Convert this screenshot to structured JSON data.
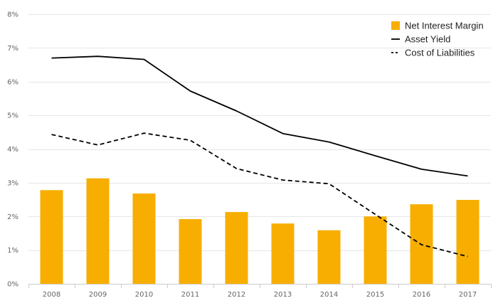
{
  "chart_data": {
    "type": "bar",
    "categories": [
      "2008",
      "2009",
      "2010",
      "2011",
      "2012",
      "2013",
      "2014",
      "2015",
      "2016",
      "2017"
    ],
    "series": [
      {
        "name": "Net Interest Margin",
        "type": "bar",
        "color": "#F7AE00",
        "values": [
          2.78,
          3.13,
          2.68,
          1.92,
          2.13,
          1.79,
          1.59,
          2.0,
          2.36,
          2.49
        ]
      },
      {
        "name": "Asset Yield",
        "type": "line",
        "style": "solid",
        "color": "#000000",
        "values": [
          6.7,
          6.75,
          6.66,
          5.72,
          5.13,
          4.46,
          4.21,
          3.8,
          3.4,
          3.2
        ]
      },
      {
        "name": "Cost of Liabilities",
        "type": "line",
        "style": "dashed",
        "color": "#000000",
        "values": [
          4.43,
          4.12,
          4.47,
          4.26,
          3.42,
          3.08,
          2.97,
          2.06,
          1.16,
          0.81
        ]
      }
    ],
    "y_ticks": [
      "0%",
      "1%",
      "2%",
      "3%",
      "4%",
      "5%",
      "6%",
      "7%",
      "8%"
    ],
    "ylim": [
      0,
      8
    ],
    "grid": true,
    "legend_position": "top-right"
  }
}
